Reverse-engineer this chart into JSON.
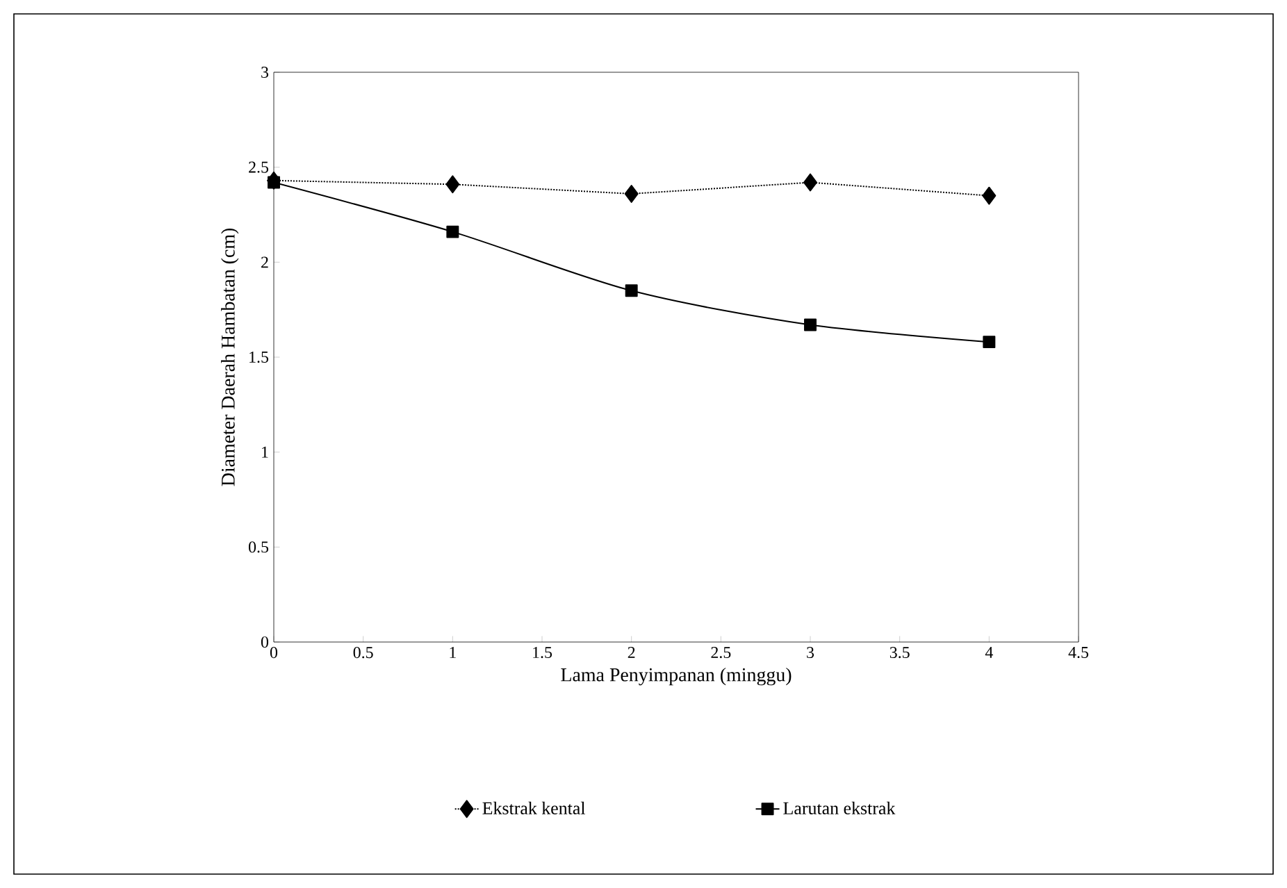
{
  "chart_data": {
    "type": "line",
    "xlabel": "Lama Penyimpanan (minggu)",
    "ylabel": "Diameter Daerah Hambatan (cm)",
    "x": [
      0,
      1,
      2,
      3,
      4
    ],
    "series": [
      {
        "name": "Ekstrak kental",
        "color": "#000000",
        "values": [
          2.43,
          2.41,
          2.36,
          2.42,
          2.35
        ],
        "line_style": "dotted",
        "marker": "diamond"
      },
      {
        "name": "Larutan ekstrak",
        "color": "#000000",
        "values": [
          2.42,
          2.16,
          1.85,
          1.67,
          1.58
        ],
        "line_style": "solid",
        "marker": "square"
      }
    ],
    "xlim": [
      0,
      4.5
    ],
    "xticks": [
      0,
      0.5,
      1,
      1.5,
      2,
      2.5,
      3,
      3.5,
      4,
      4.5
    ],
    "ylim": [
      0,
      3
    ],
    "yticks": [
      0,
      0.5,
      1,
      1.5,
      2,
      2.5,
      3
    ],
    "grid": false,
    "legend": "bottom"
  }
}
